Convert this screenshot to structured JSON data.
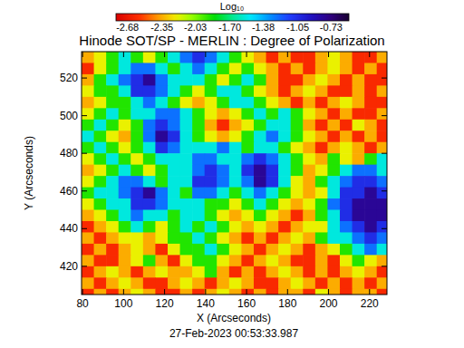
{
  "chart_data": {
    "type": "heatmap",
    "title": "Hinode SOT/SP - MERLIN : Degree of Polarization",
    "x_label": "X (Arcseconds)",
    "y_label": "Y (Arcseconds)",
    "annotations": [
      "27-Feb-2023 00:53:33.987"
    ],
    "colorbar_label": "Log₁₀",
    "colorbar_range": [
      -2.79,
      -0.56
    ],
    "colorbar_ticks": [
      -2.68,
      -2.35,
      -2.03,
      -1.7,
      -1.38,
      -1.05,
      -0.73
    ],
    "xlim": [
      79.5,
      228.5
    ],
    "ylim": [
      405,
      534
    ],
    "xticks": [
      80,
      100,
      120,
      140,
      160,
      180,
      200,
      220
    ],
    "yticks": [
      420,
      440,
      460,
      480,
      500,
      520
    ],
    "x": [
      82.5,
      88.5,
      94.5,
      100.5,
      106.5,
      112.5,
      118.5,
      124.5,
      130.5,
      136.5,
      142.5,
      148.5,
      154.5,
      160.5,
      166.5,
      172.5,
      178.5,
      184.5,
      190.5,
      196.5,
      202.5,
      208.5,
      214.5,
      220.5,
      226.5
    ],
    "y": [
      531,
      525,
      519,
      513,
      507,
      501,
      495,
      489,
      483,
      477,
      471,
      465,
      459,
      453,
      447,
      441,
      435,
      429,
      423,
      417,
      411,
      405
    ],
    "values": [
      [
        -2.35,
        -2.2,
        -1.9,
        -1.55,
        -1.9,
        -2.2,
        -1.9,
        -1.55,
        -1.25,
        -1.05,
        -1.25,
        -1.55,
        -1.9,
        -2.2,
        -2.35,
        -2.6,
        -2.35,
        -2.6,
        -2.6,
        -2.35,
        -2.2,
        -2.35,
        -2.6,
        -2.6,
        -2.35
      ],
      [
        -2.6,
        -2.2,
        -1.9,
        -1.55,
        -1.25,
        -1.25,
        -1.55,
        -1.9,
        -1.55,
        -1.25,
        -1.55,
        -1.9,
        -2.2,
        -1.9,
        -2.2,
        -2.35,
        -2.6,
        -2.35,
        -2.6,
        -2.35,
        -2.2,
        -2.35,
        -2.6,
        -2.35,
        -2.6
      ],
      [
        -2.35,
        -1.9,
        -1.55,
        -1.25,
        -1.05,
        -0.8,
        -1.25,
        -1.55,
        -1.55,
        -1.55,
        -1.9,
        -2.2,
        -1.9,
        -1.55,
        -1.9,
        -2.35,
        -2.6,
        -2.6,
        -2.35,
        -2.2,
        -2.35,
        -2.6,
        -2.35,
        -2.6,
        -2.6
      ],
      [
        -2.2,
        -1.9,
        -1.9,
        -1.55,
        -1.05,
        -1.05,
        -1.25,
        -1.55,
        -1.9,
        -2.2,
        -1.9,
        -1.55,
        -1.55,
        -1.9,
        -2.2,
        -2.35,
        -2.6,
        -2.35,
        -2.2,
        -2.35,
        -2.6,
        -2.6,
        -2.35,
        -2.6,
        -2.35
      ],
      [
        -2.35,
        -2.2,
        -1.9,
        -1.9,
        -1.55,
        -1.25,
        -1.55,
        -1.9,
        -2.2,
        -2.35,
        -2.2,
        -1.9,
        -1.55,
        -1.55,
        -1.9,
        -2.2,
        -2.35,
        -2.6,
        -2.35,
        -2.6,
        -2.35,
        -2.2,
        -2.35,
        -2.6,
        -2.6
      ],
      [
        -2.2,
        -1.9,
        -1.55,
        -1.9,
        -1.55,
        -1.55,
        -1.25,
        -1.25,
        -1.55,
        -1.9,
        -2.2,
        -2.35,
        -2.2,
        -1.9,
        -1.55,
        -1.9,
        -1.55,
        -1.9,
        -2.2,
        -2.35,
        -2.6,
        -2.35,
        -2.6,
        -2.6,
        -2.35
      ],
      [
        -1.9,
        -1.55,
        -1.9,
        -2.2,
        -1.9,
        -1.25,
        -1.05,
        -1.25,
        -1.55,
        -1.9,
        -2.35,
        -2.6,
        -2.35,
        -2.2,
        -1.9,
        -1.55,
        -1.55,
        -1.9,
        -2.35,
        -2.6,
        -2.35,
        -2.6,
        -2.2,
        -2.35,
        -2.6
      ],
      [
        -1.55,
        -1.9,
        -2.2,
        -2.35,
        -1.9,
        -1.25,
        -0.8,
        -1.05,
        -1.55,
        -1.9,
        -2.2,
        -2.35,
        -2.2,
        -1.9,
        -1.55,
        -1.25,
        -1.55,
        -1.9,
        -2.2,
        -2.35,
        -2.6,
        -2.35,
        -2.6,
        -2.35,
        -2.6
      ],
      [
        -1.9,
        -1.55,
        -1.9,
        -2.2,
        -1.9,
        -1.55,
        -1.05,
        -1.25,
        -1.55,
        -1.55,
        -1.55,
        -1.25,
        -1.55,
        -1.9,
        -1.55,
        -1.55,
        -1.9,
        -2.2,
        -2.35,
        -2.6,
        -2.35,
        -2.2,
        -2.35,
        -2.6,
        -2.35
      ],
      [
        -2.2,
        -1.9,
        -1.55,
        -1.9,
        -2.2,
        -1.9,
        -1.55,
        -1.55,
        -1.55,
        -1.25,
        -1.25,
        -1.55,
        -1.55,
        -1.25,
        -1.05,
        -1.25,
        -1.55,
        -1.9,
        -2.2,
        -2.35,
        -1.9,
        -2.2,
        -2.35,
        -1.9,
        -1.55
      ],
      [
        -2.35,
        -2.2,
        -1.9,
        -1.55,
        -1.9,
        -2.2,
        -1.9,
        -1.55,
        -1.55,
        -1.25,
        -1.05,
        -1.25,
        -1.55,
        -1.05,
        -0.8,
        -1.05,
        -1.55,
        -1.9,
        -2.35,
        -2.2,
        -1.9,
        -1.55,
        -1.25,
        -1.25,
        -1.55
      ],
      [
        -2.2,
        -1.9,
        -1.55,
        -1.25,
        -1.25,
        -1.55,
        -1.9,
        -1.55,
        -1.55,
        -1.05,
        -1.05,
        -1.25,
        -1.55,
        -1.25,
        -0.8,
        -1.05,
        -1.55,
        -2.2,
        -2.35,
        -1.9,
        -1.55,
        -1.25,
        -1.05,
        -1.05,
        -1.25
      ],
      [
        -1.9,
        -1.55,
        -1.55,
        -1.25,
        -1.05,
        -0.8,
        -1.25,
        -1.55,
        -1.9,
        -1.25,
        -1.25,
        -1.55,
        -1.9,
        -1.55,
        -1.25,
        -1.55,
        -1.9,
        -2.2,
        -2.35,
        -2.2,
        -1.55,
        -1.05,
        -1.05,
        -0.8,
        -1.05
      ],
      [
        -2.2,
        -1.9,
        -1.55,
        -1.55,
        -1.05,
        -1.05,
        -1.25,
        -1.55,
        -1.55,
        -1.55,
        -1.9,
        -1.9,
        -2.2,
        -1.9,
        -1.55,
        -1.9,
        -2.2,
        -2.35,
        -2.2,
        -1.9,
        -1.25,
        -1.05,
        -0.8,
        -0.8,
        -0.8
      ],
      [
        -2.35,
        -2.2,
        -1.9,
        -1.55,
        -1.25,
        -1.55,
        -1.55,
        -1.9,
        -1.55,
        -1.55,
        -1.9,
        -2.2,
        -2.35,
        -2.2,
        -1.9,
        -2.2,
        -2.35,
        -2.6,
        -2.35,
        -1.9,
        -1.55,
        -1.05,
        -0.8,
        -0.8,
        -0.8
      ],
      [
        -2.6,
        -2.35,
        -2.2,
        -1.9,
        -1.55,
        -1.9,
        -2.2,
        -1.9,
        -1.55,
        -1.9,
        -1.55,
        -1.9,
        -2.2,
        -2.35,
        -2.2,
        -2.35,
        -2.6,
        -2.35,
        -2.2,
        -2.2,
        -1.55,
        -1.25,
        -1.05,
        -0.8,
        -1.05
      ],
      [
        -2.35,
        -2.6,
        -2.35,
        -2.2,
        -2.2,
        -2.35,
        -2.2,
        -1.9,
        -1.9,
        -1.55,
        -1.9,
        -2.2,
        -2.35,
        -2.6,
        -2.35,
        -2.6,
        -2.35,
        -2.2,
        -2.35,
        -1.9,
        -1.55,
        -1.55,
        -1.25,
        -1.05,
        -1.25
      ],
      [
        -2.6,
        -2.35,
        -2.6,
        -2.35,
        -2.2,
        -2.35,
        -2.6,
        -2.2,
        -1.9,
        -1.9,
        -1.55,
        -1.9,
        -2.2,
        -2.35,
        -2.6,
        -2.35,
        -2.2,
        -2.35,
        -2.6,
        -2.35,
        -2.2,
        -1.9,
        -1.55,
        -1.25,
        -1.55
      ],
      [
        -2.35,
        -2.6,
        -2.6,
        -2.35,
        -2.2,
        -1.9,
        -2.35,
        -2.6,
        -2.2,
        -1.9,
        -1.9,
        -2.2,
        -2.35,
        -2.6,
        -2.35,
        -2.2,
        -2.35,
        -2.6,
        -2.6,
        -2.35,
        -2.6,
        -2.2,
        -1.9,
        -2.2,
        -2.35
      ],
      [
        -2.6,
        -2.35,
        -2.2,
        -2.35,
        -2.6,
        -2.35,
        -2.2,
        -2.35,
        -2.35,
        -2.2,
        -1.9,
        -2.35,
        -2.6,
        -2.35,
        -2.6,
        -2.35,
        -2.2,
        -2.35,
        -2.6,
        -2.35,
        -2.6,
        -2.35,
        -2.2,
        -2.35,
        -2.6
      ],
      [
        -2.35,
        -2.6,
        -2.35,
        -2.2,
        -2.35,
        -2.6,
        -2.6,
        -2.35,
        -2.2,
        -2.35,
        -2.6,
        -2.35,
        -2.2,
        -2.35,
        -2.6,
        -2.6,
        -2.35,
        -2.2,
        -2.35,
        -2.6,
        -2.35,
        -2.6,
        -2.35,
        -2.6,
        -2.35
      ],
      [
        -2.6,
        -2.35,
        -2.6,
        -2.35,
        -2.2,
        -2.35,
        -2.6,
        -2.6,
        -2.35,
        -2.6,
        -2.35,
        -2.2,
        -2.35,
        -2.6,
        -2.35,
        -2.6,
        -2.35,
        -2.35,
        -2.6,
        -2.2,
        -2.35,
        -2.6,
        -2.35,
        -2.35,
        -2.6
      ]
    ]
  }
}
